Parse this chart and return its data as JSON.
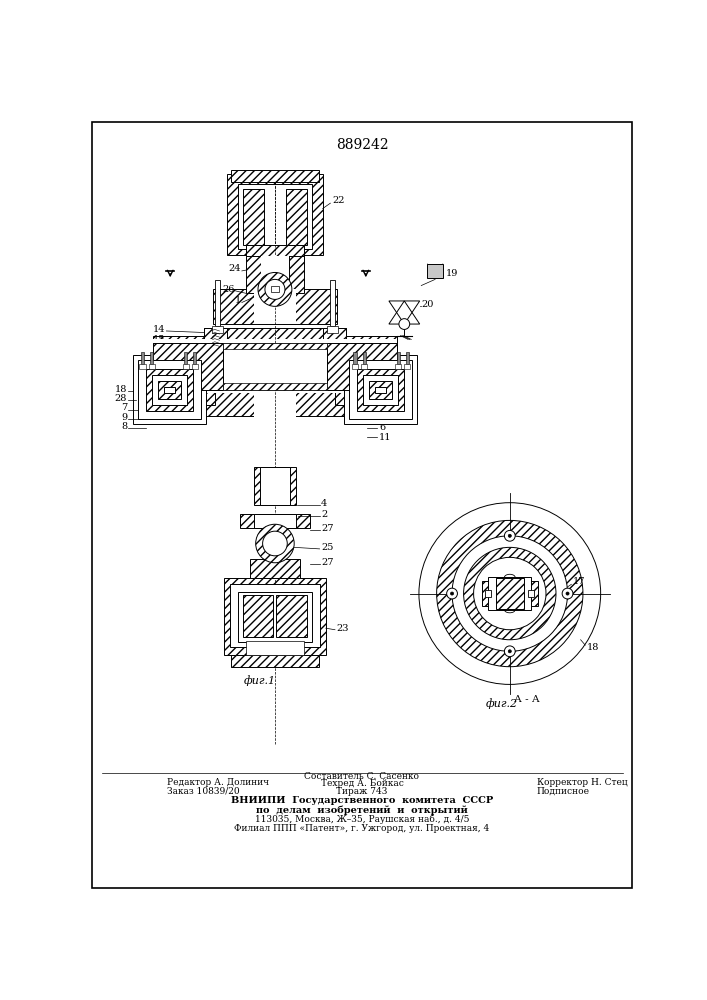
{
  "patent_number": "889242",
  "fig1_label": "фиг.1",
  "fig2_label": "фиг.2",
  "section_label": "А - А",
  "background_color": "#ffffff",
  "footer_line1_left": "Редактор А. Долинич",
  "footer_line2_left": "Заказ 10839/20",
  "footer_line1_center": "Составитель С. Сасенко",
  "footer_line2_center": "Техред А. Бойкас",
  "footer_line3_center": "Тираж 743",
  "footer_line1_right": "Корректор Н. Стец",
  "footer_line2_right": "Подписное",
  "footer_org": "ВНИИПИ  Государственного  комитета  СССР",
  "footer_org2": "по  делам  изобретений  и  открытий",
  "footer_addr1": "113035, Москва, Ж–35, Раушская наб., д. 4/5",
  "footer_addr2": "Филиал ППП «Патент», г. Ужгород, ул. Проектная, 4"
}
